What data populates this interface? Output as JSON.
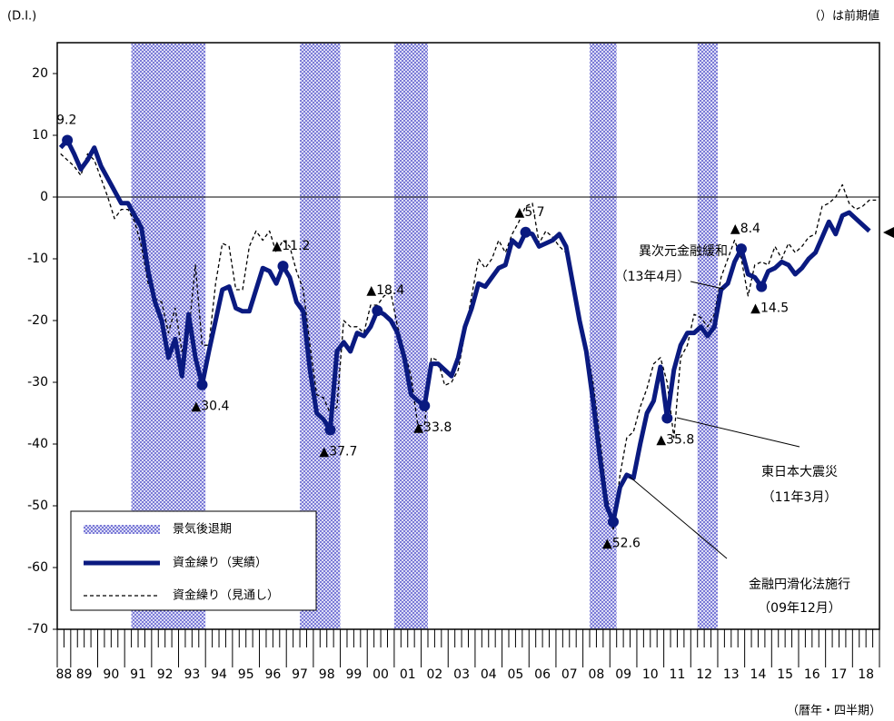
{
  "chart_data": {
    "type": "line",
    "y_unit": "(D.I.)",
    "note": "（）は前期値",
    "x_label": "（暦年・四半期）",
    "categories": [
      "88",
      null,
      "89",
      null,
      null,
      null,
      "90",
      null,
      null,
      null,
      "91",
      null,
      null,
      null,
      "92",
      null,
      null,
      null,
      "93",
      null,
      null,
      null,
      "94",
      null,
      null,
      null,
      "95",
      null,
      null,
      null,
      "96",
      null,
      null,
      null,
      "97",
      null,
      null,
      null,
      "98",
      null,
      null,
      null,
      "99",
      null,
      null,
      null,
      "00",
      null,
      null,
      null,
      "01",
      null,
      null,
      null,
      "02",
      null,
      null,
      null,
      "03",
      null,
      null,
      null,
      "04",
      null,
      null,
      null,
      "05",
      null,
      null,
      null,
      "06",
      null,
      null,
      null,
      "07",
      null,
      null,
      null,
      "08",
      null,
      null,
      null,
      "09",
      null,
      null,
      null,
      "10",
      null,
      null,
      null,
      "11",
      null,
      null,
      null,
      "12",
      null,
      null,
      null,
      "13",
      null,
      null,
      null,
      "14",
      null,
      null,
      null,
      "15",
      null,
      null,
      null,
      "16",
      null,
      null,
      null,
      "17",
      null,
      null,
      null,
      "18",
      null,
      null,
      null
    ],
    "ylim": [
      -70,
      25
    ],
    "yticks": [
      20,
      10,
      0,
      -10,
      -20,
      -30,
      -40,
      -50,
      -60,
      -70
    ],
    "recessions": {
      "name": "景気後退期",
      "color": "#6b6bd6",
      "periods": [
        [
          11,
          21
        ],
        [
          36,
          41
        ],
        [
          50,
          54
        ],
        [
          79,
          82
        ],
        [
          95,
          97
        ]
      ]
    },
    "series": [
      {
        "name": "資金繰り（実績）",
        "color": "#0a1a80",
        "style": "solid",
        "values": [
          8,
          9.2,
          7,
          4.5,
          6,
          8,
          5,
          3,
          1,
          -1,
          -1,
          -3,
          -5,
          -12,
          -17,
          -20,
          -26,
          -23,
          -29,
          -19,
          -26,
          -30.4,
          -25,
          -20,
          -15,
          -14.5,
          -18,
          -18.5,
          -18.5,
          -15,
          -11.5,
          -12,
          -14,
          -11.2,
          -13,
          -17,
          -18.5,
          -28,
          -35,
          -36,
          -37.7,
          -25,
          -23.5,
          -25,
          -22,
          -22.5,
          -21,
          -18.4,
          -19,
          -20,
          -22,
          -26,
          -32,
          -33,
          -33.8,
          -27,
          -27,
          -28,
          -29,
          -26,
          -21,
          -18,
          -14,
          -14.5,
          -13,
          -11.5,
          -11,
          -7,
          -8,
          -5.7,
          -6,
          -8,
          -7.5,
          -7,
          -6,
          -8,
          -14,
          -20,
          -25,
          -33,
          -42,
          -50,
          -52.6,
          -47,
          -45,
          -45.5,
          -40,
          -35,
          -33,
          -27.5,
          -35.8,
          -28,
          -24,
          -22,
          -22,
          -21,
          -22.5,
          -21,
          -15,
          -14,
          -10.5,
          -8.4,
          -12.5,
          -13,
          -14.5,
          -12,
          -11.5,
          -10.5,
          -11,
          -12.5,
          -11.5,
          -10,
          -9,
          -6.5,
          -4,
          -6,
          -3,
          -2.5,
          -3.5,
          -4.5,
          -5.5,
          null
        ],
        "value_labels": [
          null,
          "9.2",
          null,
          null,
          null,
          null,
          null,
          null,
          null,
          null,
          null,
          null,
          null,
          null,
          null,
          null,
          null,
          null,
          null,
          null,
          null,
          "▲30.4",
          null,
          null,
          null,
          null,
          null,
          null,
          null,
          null,
          null,
          null,
          null,
          "▲11.2",
          null,
          null,
          null,
          null,
          null,
          null,
          "▲37.7",
          null,
          null,
          null,
          null,
          null,
          null,
          "▲18.4",
          null,
          null,
          null,
          null,
          null,
          null,
          "▲33.8",
          null,
          null,
          null,
          null,
          null,
          null,
          null,
          null,
          null,
          null,
          null,
          null,
          null,
          null,
          "▲5.7",
          null,
          null,
          null,
          null,
          null,
          null,
          null,
          null,
          null,
          null,
          null,
          null,
          "▲52.6",
          null,
          null,
          null,
          null,
          null,
          null,
          null,
          "▲35.8",
          null,
          null,
          null,
          null,
          null,
          null,
          null,
          null,
          null,
          null,
          "▲8.4",
          null,
          null,
          "▲14.5",
          null,
          null,
          null,
          null,
          null,
          null,
          null,
          null,
          null,
          null,
          null,
          null,
          null,
          null,
          null,
          null,
          null
        ]
      },
      {
        "name": "資金繰り（見通し）",
        "color": "#000000",
        "style": "dashed",
        "values": [
          7,
          6,
          5,
          3.5,
          7,
          6,
          3,
          0,
          -3.5,
          -2,
          -2,
          -4,
          -8,
          -14,
          -16.5,
          -17,
          -22,
          -18,
          -25,
          -22,
          -11,
          -24,
          -24,
          -14,
          -7.5,
          -8,
          -15,
          -15,
          -8,
          -5.5,
          -7,
          -5.5,
          -9,
          -7,
          -8,
          -12,
          -15,
          -24,
          -32,
          -32.5,
          -35,
          -34,
          -20,
          -21,
          -21,
          -22,
          -17.5,
          -17.5,
          -16,
          -15.5,
          -21,
          -25,
          -29,
          -37,
          -37,
          -26,
          -26.5,
          -30.5,
          -30,
          -28,
          -22,
          -16,
          -10,
          -11.5,
          -10,
          -7,
          -9,
          -6,
          -4,
          -1.5,
          -1,
          -7.5,
          -5.5,
          -6.5,
          -8,
          -9,
          -13,
          -21,
          -24,
          -30,
          -39,
          -48,
          -54,
          -45,
          -39,
          -38,
          -34,
          -31,
          -27,
          -26,
          -30,
          -39,
          -26,
          -24,
          -19,
          -19.5,
          -21,
          -19,
          -13,
          -10,
          -7,
          -10,
          -16,
          -11,
          -10.5,
          -11,
          -8,
          -10,
          -7.5,
          -9,
          -8,
          -6.5,
          -6,
          -1.5,
          -1,
          0,
          2,
          -1,
          -2,
          -1.5,
          -0.5,
          -0.5
        ]
      }
    ],
    "annotations": [
      {
        "lines": [
          "異次元金融緩和",
          "（13年4月）"
        ]
      },
      {
        "lines": [
          "東日本大震災",
          "（11年3月）"
        ]
      },
      {
        "lines": [
          "金融円滑化法施行",
          "（09年12月）"
        ]
      }
    ]
  }
}
